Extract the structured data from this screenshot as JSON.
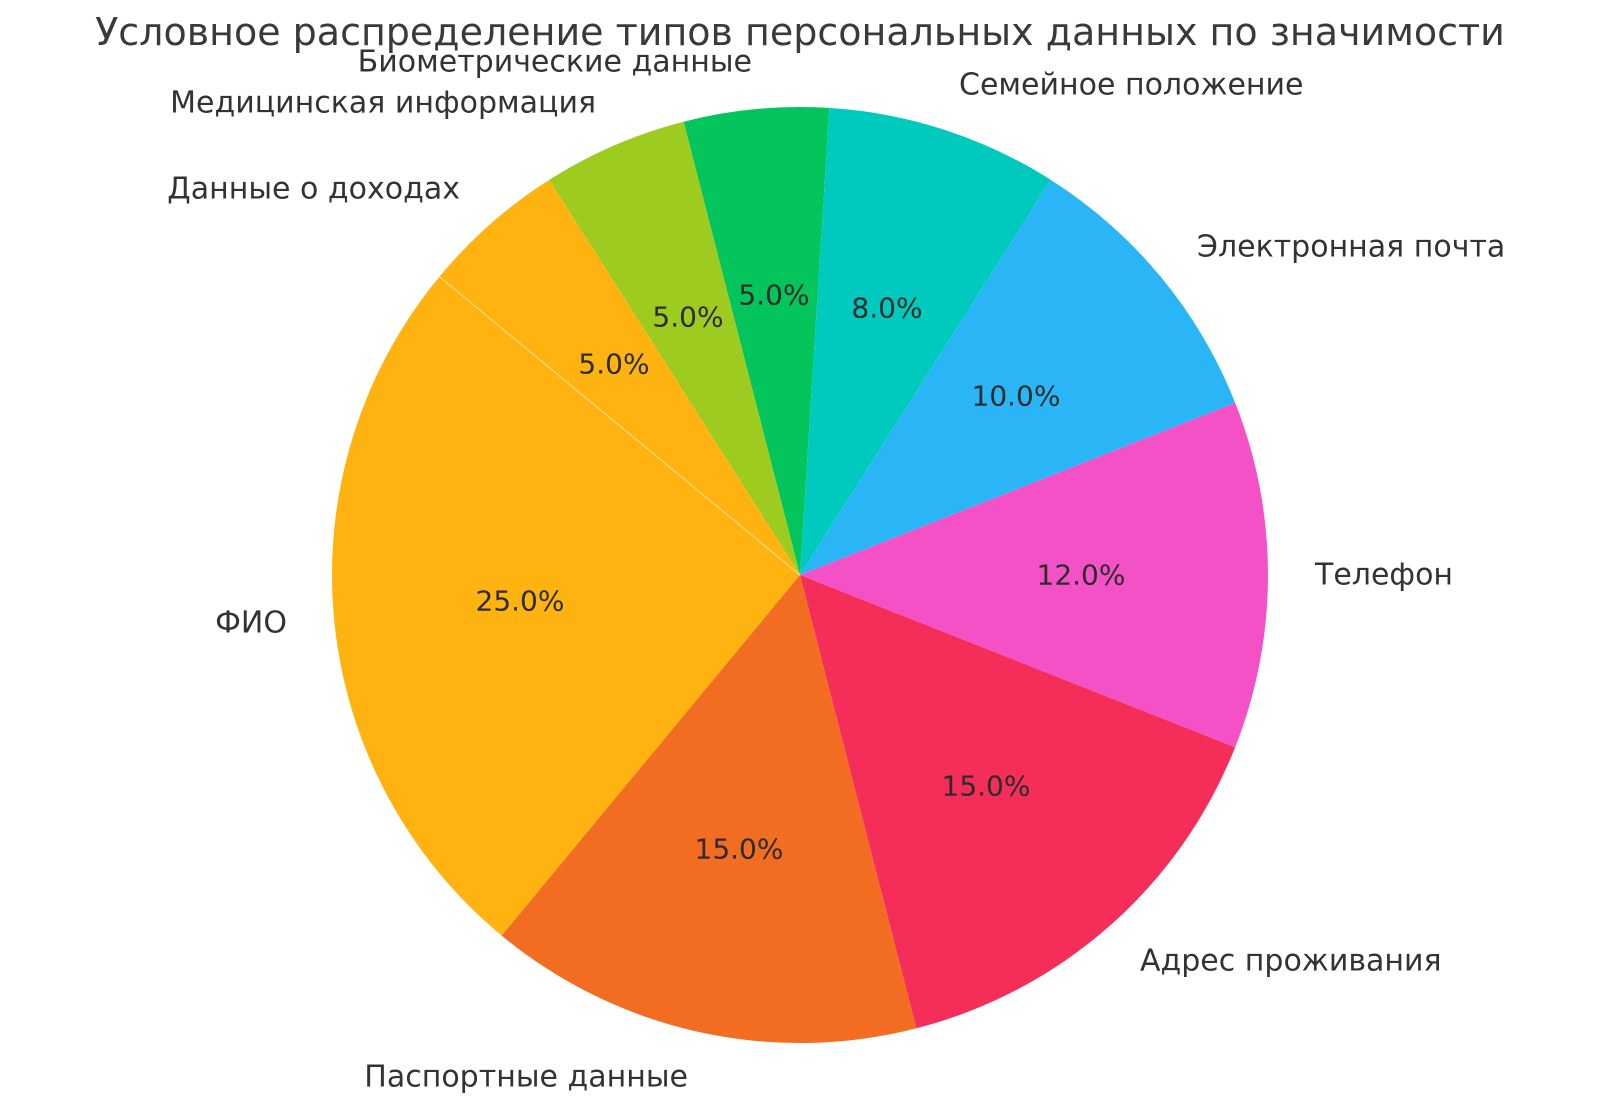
{
  "chart_data": {
    "type": "pie",
    "title": "Условное распределение типов персональных данных по значимости",
    "legend": "none",
    "direction": "counterclockwise",
    "start_angle_deg": 86.4,
    "label_distance": 1.1,
    "pct_distance": 0.6,
    "slices": [
      {
        "label": "Биометрические данные",
        "value": 5.0,
        "pct_label": "5.0%",
        "color": "#04c45c"
      },
      {
        "label": "Медицинская информация",
        "value": 5.0,
        "pct_label": "5.0%",
        "color": "#9ecb1f"
      },
      {
        "label": "Данные о доходах",
        "value": 5.0,
        "pct_label": "5.0%",
        "color": "#ffb310"
      },
      {
        "label": "ФИО",
        "value": 25.0,
        "pct_label": "25.0%",
        "color": "#ffb310"
      },
      {
        "label": "Паспортные данные",
        "value": 15.0,
        "pct_label": "15.0%",
        "color": "#f26c21"
      },
      {
        "label": "Адрес проживания",
        "value": 15.0,
        "pct_label": "15.0%",
        "color": "#f42e58"
      },
      {
        "label": "Телефон",
        "value": 12.0,
        "pct_label": "12.0%",
        "color": "#f351c5"
      },
      {
        "label": "Электронная почта",
        "value": 10.0,
        "pct_label": "10.0%",
        "color": "#2ab6f6"
      },
      {
        "label": "Семейное положение",
        "value": 8.0,
        "pct_label": "8.0%",
        "color": "#00c9bd"
      }
    ],
    "text_color": "#2c2c2c",
    "title_color": "#3a3a3a"
  }
}
